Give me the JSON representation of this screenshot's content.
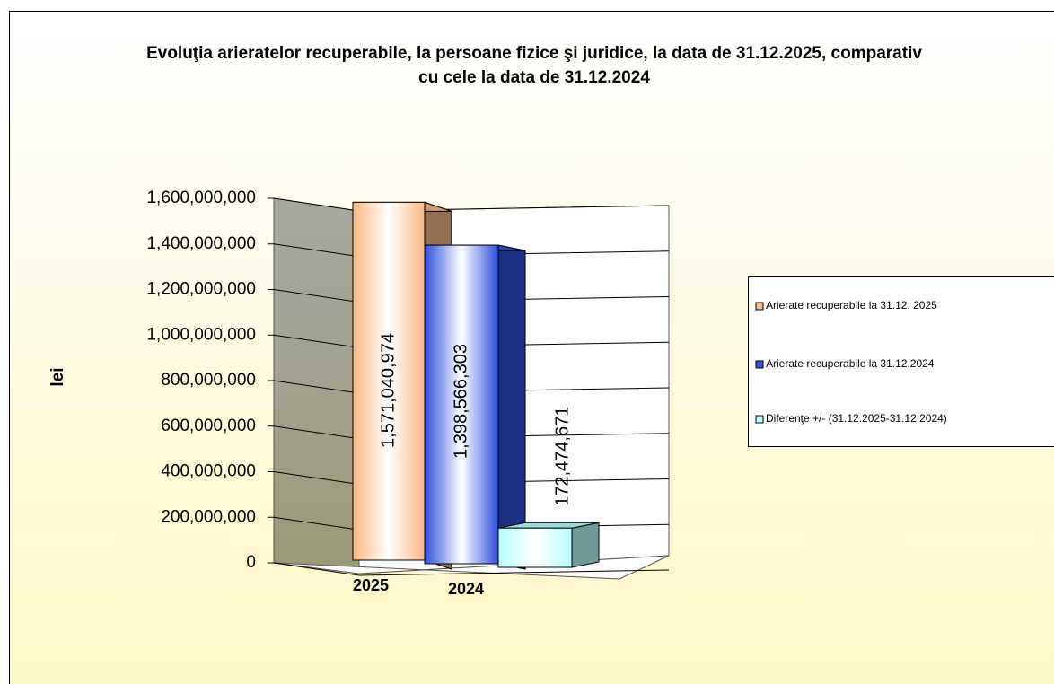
{
  "chart_data": {
    "type": "bar3d",
    "title": "Evoluţia arieratelor recuperabile, la persoane fizice şi juridice, la data de 31.12.2025, comparativ cu cele la data de 31.12.2024",
    "y_label": "lei",
    "categories": [
      "2025",
      "2024",
      null
    ],
    "values": [
      1571040974,
      1398566303,
      172474671
    ],
    "value_labels": [
      "1,571,040,974",
      "1,398,566,303",
      "172,474,671"
    ],
    "colors": [
      "#f8b884",
      "#3050e0",
      "#b8ffff"
    ],
    "legend": [
      "Arierate recuperabile la  31.12. 2025",
      "Arierate recuperabile la  31.12.2024",
      "Diferenţe +/- (31.12.2025-31.12.2024)"
    ],
    "legend_position": "right",
    "grid": true,
    "ylim": [
      0,
      1600000000
    ],
    "yticks": [
      0,
      {
        "value": 200000000,
        "label": "200,000,000"
      },
      {
        "value": 400000000,
        "label": "400,000,000"
      },
      {
        "value": 600000000,
        "label": "600,000,000"
      },
      {
        "value": 800000000,
        "label": "800,000,000"
      },
      {
        "value": 1000000000,
        "label": "1,000,000,000"
      },
      {
        "value": 1200000000,
        "label": "1,200,000,000"
      },
      {
        "value": 1400000000,
        "label": "1,400,000,000"
      },
      {
        "value": 1600000000,
        "label": "1,600,000,000"
      }
    ]
  }
}
